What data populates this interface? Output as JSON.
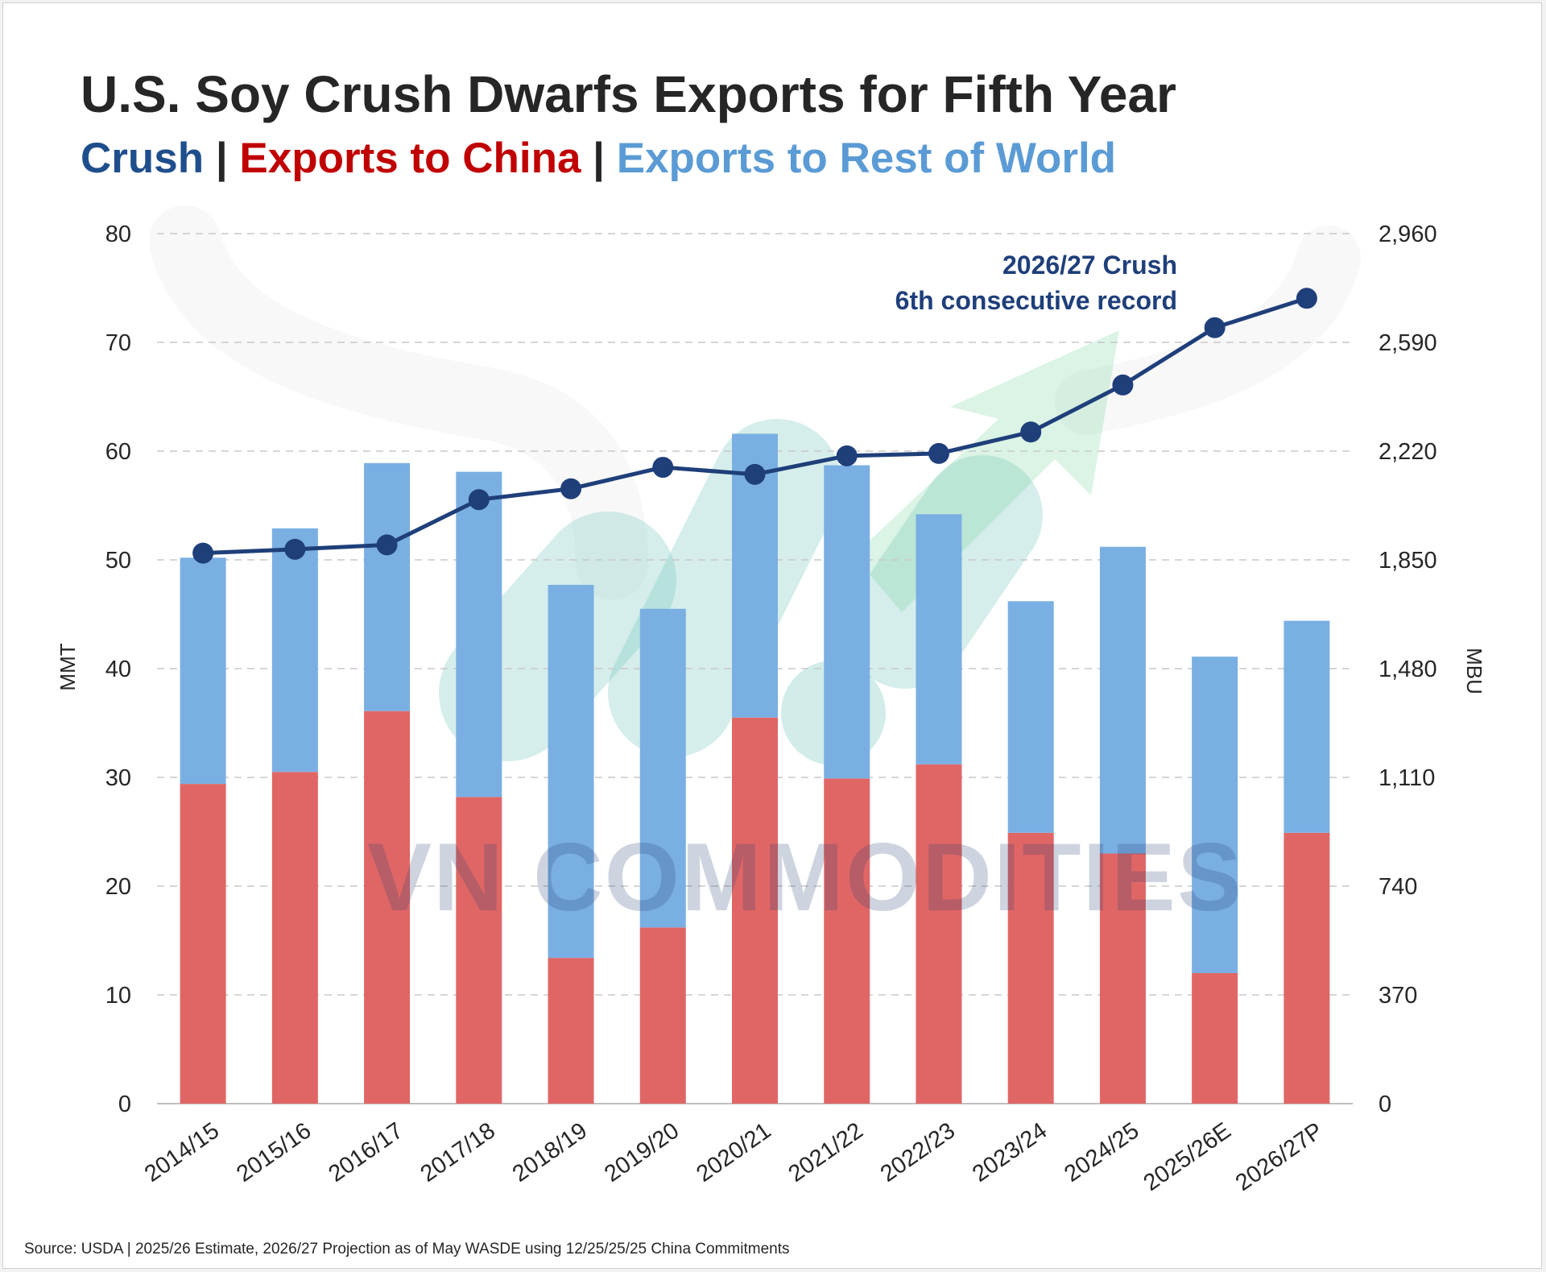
{
  "title": "U.S. Soy Crush Dwarfs Exports for Fifth Year",
  "subtitle": {
    "crush": "Crush",
    "sep1": " | ",
    "china": "Exports to China",
    "sep2": " | ",
    "row": "Exports to Rest of World"
  },
  "source": "Source: USDA | 2025/26 Estimate, 2026/27 Projection as of May WASDE using 12/25/25/25 China Commitments",
  "watermark": "VN COMMODITIES",
  "chart_data": {
    "type": "bar",
    "stacked": true,
    "categories": [
      "2014/15",
      "2015/16",
      "2016/17",
      "2017/18",
      "2018/19",
      "2019/20",
      "2020/21",
      "2021/22",
      "2022/23",
      "2023/24",
      "2024/25",
      "2025/26E",
      "2026/27P"
    ],
    "series": [
      {
        "name": "Exports to China",
        "type": "bar",
        "color": "#e06666",
        "values": [
          29.4,
          30.5,
          36.1,
          28.2,
          13.4,
          16.2,
          35.5,
          29.9,
          31.2,
          24.9,
          23.0,
          12.0,
          24.9
        ]
      },
      {
        "name": "Exports to Rest of World",
        "type": "bar",
        "color": "#7aafe3",
        "values": [
          20.8,
          22.4,
          22.8,
          29.9,
          34.3,
          29.3,
          26.1,
          28.8,
          23.0,
          21.3,
          28.2,
          29.1,
          19.5
        ]
      },
      {
        "name": "Crush",
        "type": "line",
        "axis": "right",
        "color": "#1f3f7a",
        "values": [
          1873,
          1886,
          1901,
          2055,
          2092,
          2165,
          2141,
          2204,
          2212,
          2285,
          2445,
          2640,
          2740
        ]
      }
    ],
    "y_left": {
      "label": "MMT",
      "min": 0,
      "max": 80,
      "ticks": [
        "0",
        "10",
        "20",
        "30",
        "40",
        "50",
        "60",
        "70",
        "80"
      ]
    },
    "y_right": {
      "label": "MBU",
      "min": 0,
      "max": 2960,
      "ticks": [
        "0",
        "370",
        "740",
        "1,110",
        "1,480",
        "1,850",
        "2,220",
        "2,590",
        "2,960"
      ]
    },
    "grid": "horizontal dashed",
    "annotation": {
      "line1": "2026/27 Crush",
      "line2": "6th consecutive record"
    }
  }
}
